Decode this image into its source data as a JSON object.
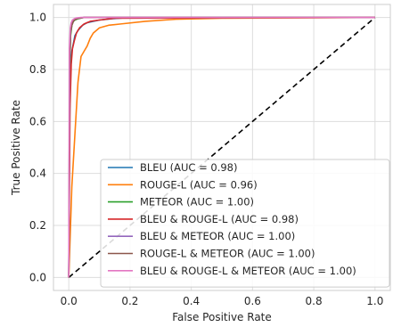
{
  "chart_data": {
    "type": "line",
    "title": "",
    "xlabel": "False Positive Rate",
    "ylabel": "True Positive Rate",
    "xlim": [
      -0.05,
      1.05
    ],
    "ylim": [
      -0.05,
      1.05
    ],
    "xticks": [
      "0.0",
      "0.2",
      "0.4",
      "0.6",
      "0.8",
      "1.0"
    ],
    "yticks": [
      "0.0",
      "0.2",
      "0.4",
      "0.6",
      "0.8",
      "1.0"
    ],
    "grid": true,
    "legend_position": "lower-right",
    "series": [
      {
        "name": "BLEU (AUC = 0.98)",
        "color": "#1f77b4",
        "x": [
          0,
          0.003,
          0.006,
          0.01,
          0.015,
          0.02,
          0.03,
          0.045,
          0.06,
          0.08,
          0.1,
          0.14,
          0.2,
          1.0
        ],
        "y": [
          0,
          0.62,
          0.8,
          0.87,
          0.9,
          0.93,
          0.95,
          0.97,
          0.98,
          0.985,
          0.99,
          0.995,
          1.0,
          1.0
        ]
      },
      {
        "name": "ROUGE-L (AUC = 0.96)",
        "color": "#ff7f0e",
        "x": [
          0,
          0.01,
          0.02,
          0.025,
          0.03,
          0.04,
          0.05,
          0.06,
          0.07,
          0.08,
          0.1,
          0.13,
          0.17,
          0.25,
          0.35,
          0.5,
          1.0
        ],
        "y": [
          0,
          0.35,
          0.55,
          0.65,
          0.75,
          0.85,
          0.87,
          0.89,
          0.92,
          0.94,
          0.96,
          0.97,
          0.975,
          0.985,
          0.993,
          0.997,
          1.0
        ]
      },
      {
        "name": "METEOR (AUC = 1.00)",
        "color": "#2ca02c",
        "x": [
          0,
          0.003,
          0.006,
          0.01,
          0.015,
          0.02,
          0.03,
          0.05,
          1.0
        ],
        "y": [
          0,
          0.8,
          0.93,
          0.97,
          0.985,
          0.99,
          0.995,
          1.0,
          1.0
        ]
      },
      {
        "name": "BLEU & ROUGE-L (AUC = 0.98)",
        "color": "#d62728",
        "x": [
          0,
          0.004,
          0.008,
          0.012,
          0.018,
          0.025,
          0.035,
          0.05,
          0.07,
          0.1,
          0.15,
          1.0
        ],
        "y": [
          0,
          0.65,
          0.82,
          0.88,
          0.91,
          0.94,
          0.96,
          0.975,
          0.985,
          0.99,
          0.997,
          1.0
        ]
      },
      {
        "name": "BLEU & METEOR (AUC = 1.00)",
        "color": "#9467bd",
        "x": [
          0,
          0.003,
          0.006,
          0.01,
          0.015,
          0.02,
          0.03,
          0.05,
          1.0
        ],
        "y": [
          0,
          0.85,
          0.95,
          0.975,
          0.99,
          0.995,
          0.998,
          1.0,
          1.0
        ]
      },
      {
        "name": "ROUGE-L & METEOR (AUC = 1.00)",
        "color": "#8c564b",
        "x": [
          0,
          0.003,
          0.006,
          0.01,
          0.015,
          0.02,
          0.03,
          0.05,
          1.0
        ],
        "y": [
          0,
          0.82,
          0.94,
          0.97,
          0.985,
          0.992,
          0.996,
          1.0,
          1.0
        ]
      },
      {
        "name": "BLEU & ROUGE-L & METEOR (AUC = 1.00)",
        "color": "#e377c2",
        "x": [
          0,
          0.002,
          0.005,
          0.008,
          0.012,
          0.018,
          0.025,
          0.04,
          1.0
        ],
        "y": [
          0,
          0.88,
          0.96,
          0.98,
          0.99,
          0.995,
          0.998,
          1.0,
          1.0
        ]
      }
    ],
    "reference_line": {
      "x": [
        0,
        1
      ],
      "y": [
        0,
        1
      ],
      "color": "#000000",
      "style": "dashed"
    }
  }
}
